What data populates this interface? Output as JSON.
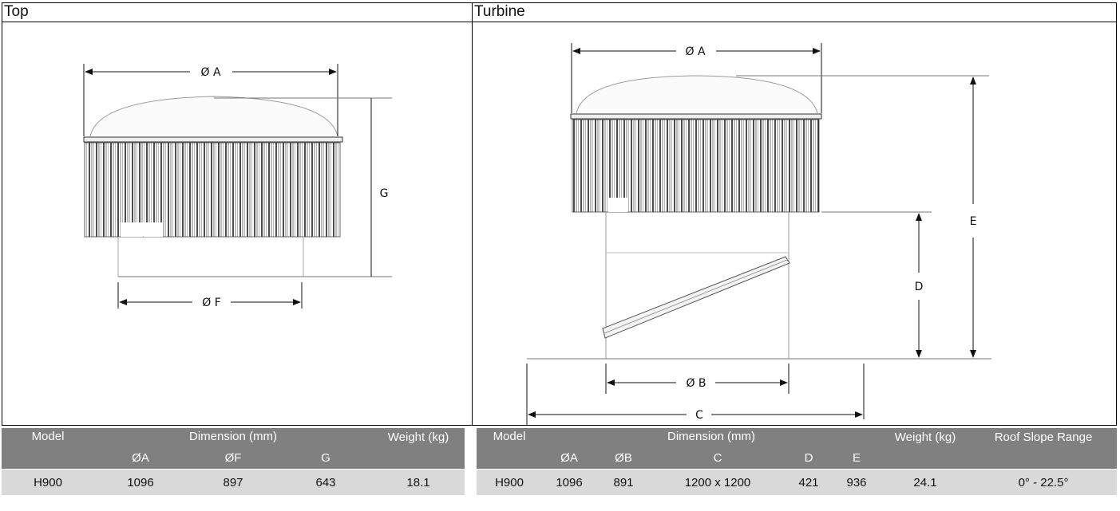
{
  "panels": {
    "top": {
      "title": "Top",
      "labels": {
        "dia_a": "Ø A",
        "dia_f": "Ø F",
        "g": "G"
      }
    },
    "turbine": {
      "title": "Turbine",
      "labels": {
        "dia_a": "Ø A",
        "dia_b": "Ø B",
        "c": "C",
        "d": "D",
        "e": "E"
      }
    }
  },
  "tables": {
    "top": {
      "headers": {
        "model": "Model",
        "dimension": "Dimension (mm)",
        "weight": "Weight (kg)"
      },
      "subheaders": [
        "ØA",
        "ØF",
        "G"
      ],
      "rows": [
        {
          "model": "H900",
          "a": "1096",
          "f": "897",
          "g": "643",
          "weight": "18.1"
        }
      ]
    },
    "turbine": {
      "headers": {
        "model": "Model",
        "dimension": "Dimension (mm)",
        "weight": "Weight (kg)",
        "roof_slope": "Roof Slope Range"
      },
      "subheaders": [
        "ØA",
        "ØB",
        "C",
        "D",
        "E"
      ],
      "rows": [
        {
          "model": "H900",
          "a": "1096",
          "b": "891",
          "c": "1200 x 1200",
          "d": "421",
          "e": "936",
          "weight": "24.1",
          "roof_slope": "0° - 22.5°"
        }
      ]
    }
  }
}
